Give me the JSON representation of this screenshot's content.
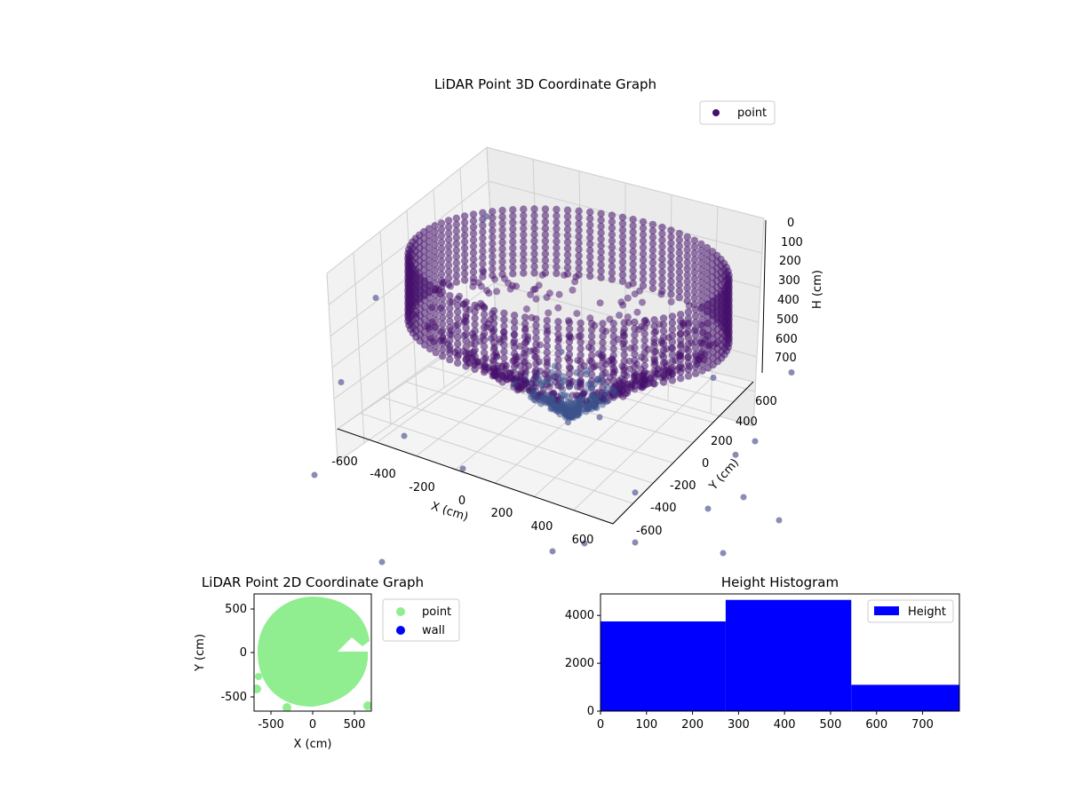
{
  "chart_data": [
    {
      "type": "scatter",
      "title": "LiDAR Point 3D Coordinate Graph",
      "xlabel": "X (cm)",
      "ylabel": "Y (cm)",
      "zlabel": "H (cm)",
      "xlim": [
        -700,
        700
      ],
      "ylim": [
        -700,
        700
      ],
      "zlim": [
        0,
        780
      ],
      "z_inverted": true,
      "x_ticks": [
        "-600",
        "-400",
        "-200",
        "0",
        "200",
        "400",
        "600"
      ],
      "y_ticks": [
        "-600",
        "-400",
        "-200",
        "0",
        "200",
        "400",
        "600"
      ],
      "z_ticks": [
        "0",
        "100",
        "200",
        "300",
        "400",
        "500",
        "600",
        "700"
      ],
      "legend": [
        "point"
      ],
      "legend_position": "upper right",
      "grid": true,
      "colors": {
        "point_dark": "#45106b",
        "point_mid": "#3b528b",
        "outlier": "#6b6fa3"
      },
      "series": [
        {
          "name": "point",
          "description_shape": "ring wall radius ~650 cm from H 0-300, inner scan surfaces down to ~700 cm",
          "sample_points": [
            [
              0,
              650,
              20
            ],
            [
              460,
              460,
              40
            ],
            [
              650,
              0,
              60
            ],
            [
              460,
              -460,
              80
            ],
            [
              0,
              -650,
              100
            ],
            [
              -460,
              -460,
              120
            ],
            [
              -650,
              0,
              140
            ],
            [
              -460,
              460,
              160
            ],
            [
              200,
              300,
              500
            ],
            [
              -200,
              -250,
              650
            ],
            [
              100,
              -100,
              720
            ],
            [
              300,
              -150,
              600
            ],
            [
              -300,
              200,
              300
            ]
          ],
          "outliers": [
            [
              -650,
              300,
              50
            ],
            [
              -600,
              -500,
              200
            ],
            [
              500,
              -650,
              400
            ],
            [
              700,
              200,
              720
            ],
            [
              650,
              -400,
              750
            ],
            [
              -300,
              -700,
              700
            ],
            [
              200,
              700,
              650
            ]
          ]
        }
      ]
    },
    {
      "type": "scatter",
      "title": "LiDAR Point 2D Coordinate Graph",
      "xlabel": "X (cm)",
      "ylabel": "Y (cm)",
      "xlim": [
        -700,
        700
      ],
      "ylim": [
        -700,
        700
      ],
      "x_ticks": [
        "-500",
        "0",
        "500"
      ],
      "y_ticks": [
        "-500",
        "0",
        "500"
      ],
      "legend": [
        "point",
        "wall"
      ],
      "legend_position": "outside right",
      "colors": {
        "point": "#90ee90",
        "wall": "#0000ff"
      },
      "series": [
        {
          "name": "point",
          "shape": "filled disc radius ~650 cm with wedge gap toward +X"
        },
        {
          "name": "wall",
          "values": []
        }
      ]
    },
    {
      "type": "bar",
      "title": "Height Histogram",
      "xlabel": "",
      "ylabel": "",
      "bins": [
        [
          0,
          272
        ],
        [
          272,
          545
        ],
        [
          545,
          780
        ]
      ],
      "values": [
        3750,
        4650,
        1100
      ],
      "xlim": [
        0,
        780
      ],
      "ylim": [
        0,
        4900
      ],
      "x_ticks": [
        "0",
        "100",
        "200",
        "300",
        "400",
        "500",
        "600",
        "700"
      ],
      "y_ticks": [
        "0",
        "2000",
        "4000"
      ],
      "legend": [
        "Height"
      ],
      "legend_position": "upper right",
      "colors": {
        "bar": "#0000ff"
      }
    }
  ]
}
